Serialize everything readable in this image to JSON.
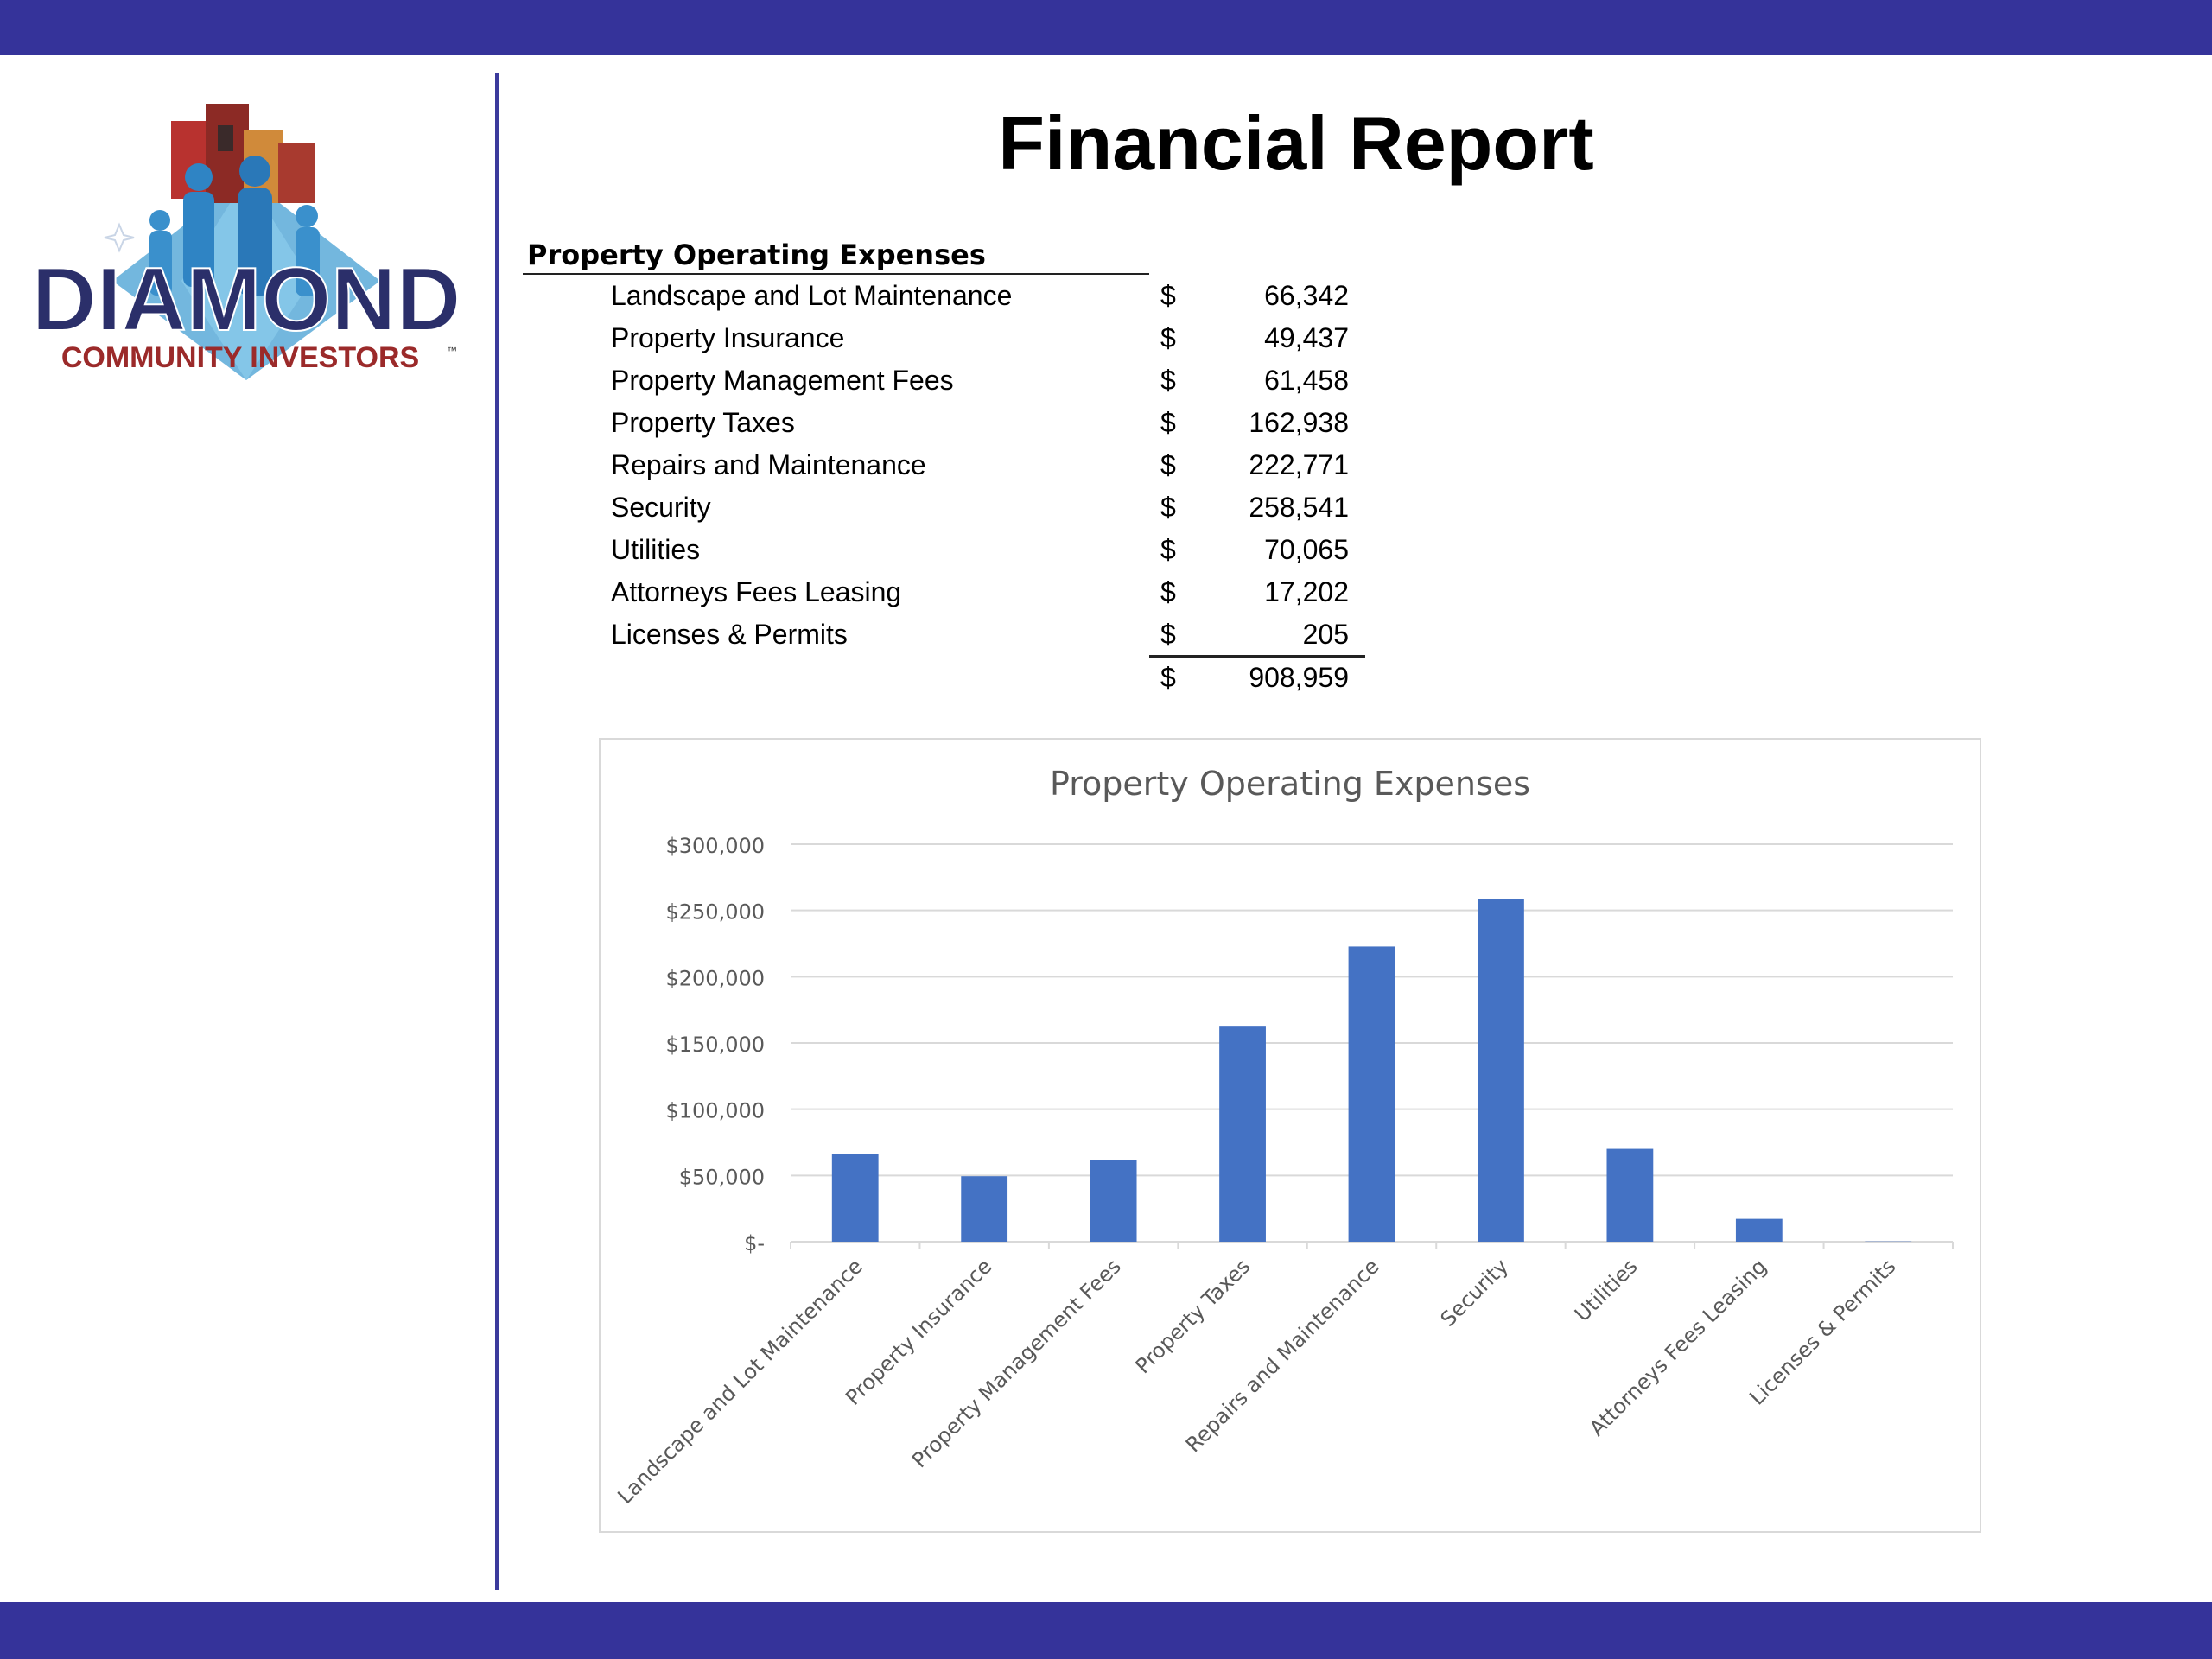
{
  "page": {
    "title": "Financial Report",
    "brand_color": "#35339a"
  },
  "logo": {
    "name": "DIAMOND",
    "tagline": "COMMUNITY INVESTORS",
    "trademark": "™"
  },
  "table": {
    "header": "Property Operating Expenses",
    "currency_symbol": "$",
    "rows": [
      {
        "label": "Landscape and Lot Maintenance",
        "amount": "66,342"
      },
      {
        "label": "Property Insurance",
        "amount": "49,437"
      },
      {
        "label": "Property Management Fees",
        "amount": "61,458"
      },
      {
        "label": "Property Taxes",
        "amount": "162,938"
      },
      {
        "label": "Repairs and Maintenance",
        "amount": "222,771"
      },
      {
        "label": "Security",
        "amount": "258,541"
      },
      {
        "label": "Utilities",
        "amount": "70,065"
      },
      {
        "label": "Attorneys Fees Leasing",
        "amount": "17,202"
      },
      {
        "label": "Licenses & Permits",
        "amount": "205"
      }
    ],
    "total": "908,959"
  },
  "chart_data": {
    "type": "bar",
    "title": "Property Operating Expenses",
    "categories": [
      "Landscape and Lot Maintenance",
      "Property Insurance",
      "Property Management Fees",
      "Property Taxes",
      "Repairs and Maintenance",
      "Security",
      "Utilities",
      "Attorneys Fees Leasing",
      "Licenses & Permits"
    ],
    "values": [
      66342,
      49437,
      61458,
      162938,
      222771,
      258541,
      70065,
      17202,
      205
    ],
    "ylim": [
      0,
      300000
    ],
    "yticks": [
      0,
      50000,
      100000,
      150000,
      200000,
      250000,
      300000
    ],
    "ytick_labels": [
      "$-",
      "$50,000",
      "$100,000",
      "$150,000",
      "$200,000",
      "$250,000",
      "$300,000"
    ],
    "grid": true,
    "bar_color": "#4472c4"
  }
}
